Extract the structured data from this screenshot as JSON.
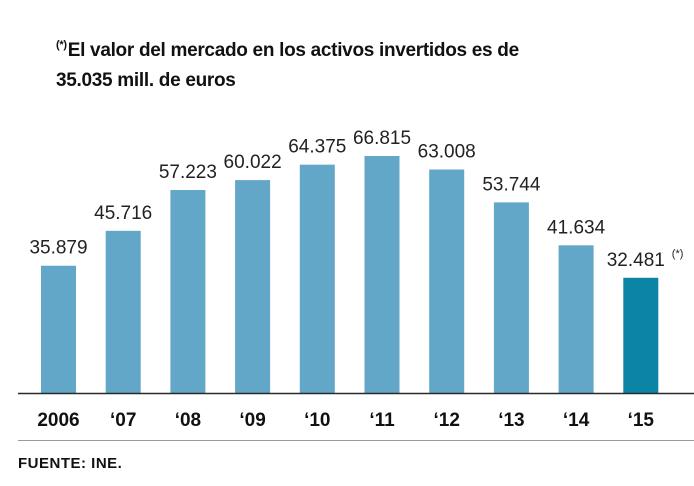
{
  "note": {
    "marker": "(*)",
    "line1": "El valor del mercado en los activos invertidos es de",
    "line2": "35.035 mill. de euros"
  },
  "source": "FUENTE:  INE.",
  "colors": {
    "bar": "#63a7c8",
    "highlight": "#0b84a5",
    "axis": "#2a2a2a",
    "rule": "#9a9a9a"
  },
  "chart_data": {
    "type": "bar",
    "categories": [
      "2006",
      "‘07",
      "‘08",
      "‘09",
      "‘10",
      "‘11",
      "‘12",
      "‘13",
      "‘14",
      "‘15"
    ],
    "values": [
      35879,
      45716,
      57223,
      60022,
      64375,
      66815,
      63008,
      53744,
      41634,
      32481
    ],
    "value_labels": [
      "35.879",
      "45.716",
      "57.223",
      "60.022",
      "64.375",
      "66.815",
      "63.008",
      "53.744",
      "41.634",
      "32.481"
    ],
    "footnote_marker": "(*)",
    "footnoted_index": 9,
    "highlight_index": 9,
    "title": "",
    "xlabel": "",
    "ylabel": "",
    "ylim": [
      0,
      66815
    ],
    "grid": false,
    "legend": "none"
  }
}
